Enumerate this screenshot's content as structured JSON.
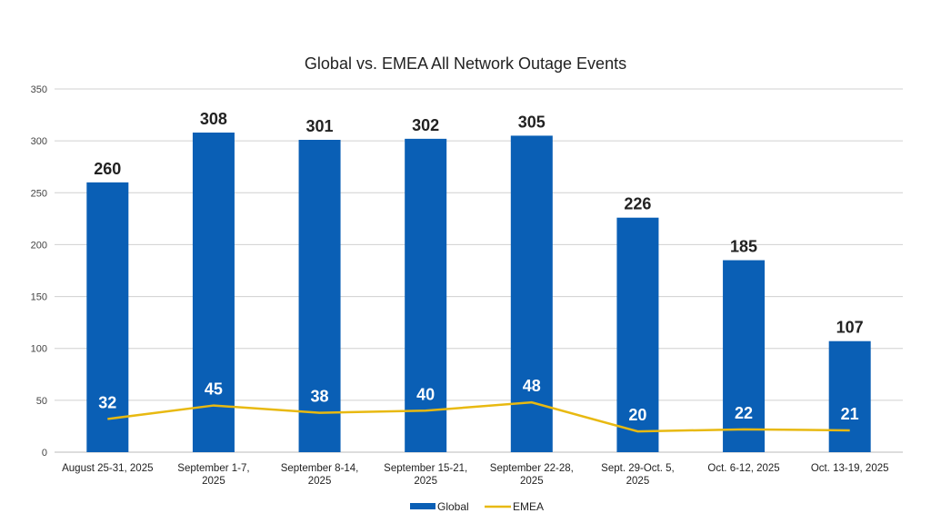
{
  "chart_data": {
    "type": "bar",
    "title": "Global vs. EMEA All Network Outage Events",
    "categories": [
      [
        "August 25-31, 2025"
      ],
      [
        "September 1-7,",
        "2025"
      ],
      [
        "September 8-14,",
        "2025"
      ],
      [
        "September 15-21,",
        "2025"
      ],
      [
        "September 22-28,",
        "2025"
      ],
      [
        "Sept. 29-Oct. 5,",
        "2025"
      ],
      [
        "Oct. 6-12, 2025"
      ],
      [
        "Oct. 13-19, 2025"
      ]
    ],
    "series": [
      {
        "name": "Global",
        "type": "bar",
        "color": "#0a5fb5",
        "values": [
          260,
          308,
          301,
          302,
          305,
          226,
          185,
          107
        ]
      },
      {
        "name": "EMEA",
        "type": "line",
        "color": "#e8b911",
        "values": [
          32,
          45,
          38,
          40,
          48,
          20,
          22,
          21
        ]
      }
    ],
    "ylim": [
      0,
      350
    ],
    "yticks": [
      0,
      50,
      100,
      150,
      200,
      250,
      300,
      350
    ],
    "grid": true,
    "legend": "bottom",
    "xlabel": "",
    "ylabel": ""
  }
}
